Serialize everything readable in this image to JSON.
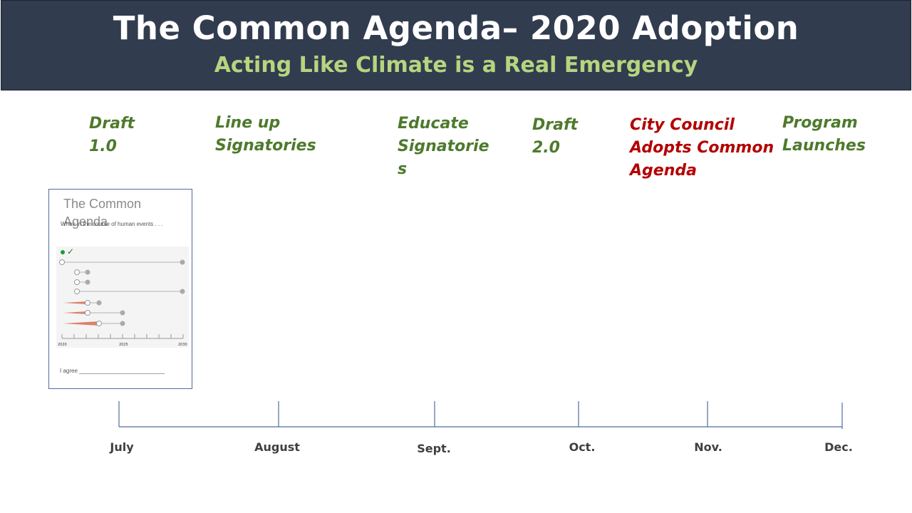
{
  "header": {
    "title": "The Common Agenda– 2020 Adoption",
    "subtitle": "Acting Like Climate is a Real Emergency"
  },
  "milestones": [
    {
      "label": "Draft\n1.0",
      "color": "#4e7a2c"
    },
    {
      "label": "Line up\nSignatories",
      "color": "#4e7a2c"
    },
    {
      "label": "Educate\nSignatorie\ns",
      "color": "#4e7a2c"
    },
    {
      "label": "Draft\n2.0",
      "color": "#4e7a2c"
    },
    {
      "label": "City Council\nAdopts  Common\nAgenda",
      "color": "#b30000"
    },
    {
      "label": "Program\nLaunches",
      "color": "#4e7a2c"
    }
  ],
  "document": {
    "title": "The Common Agenda",
    "preamble": "When in the course of human events . . .",
    "agree": "I agree ___________________________",
    "axis_labels": [
      "2020",
      "2025",
      "2030"
    ]
  },
  "timeline": {
    "months": [
      "July",
      "August",
      "Sept.",
      "Oct.",
      "Nov.",
      "Dec."
    ],
    "line_color": "#4f6e9e"
  }
}
